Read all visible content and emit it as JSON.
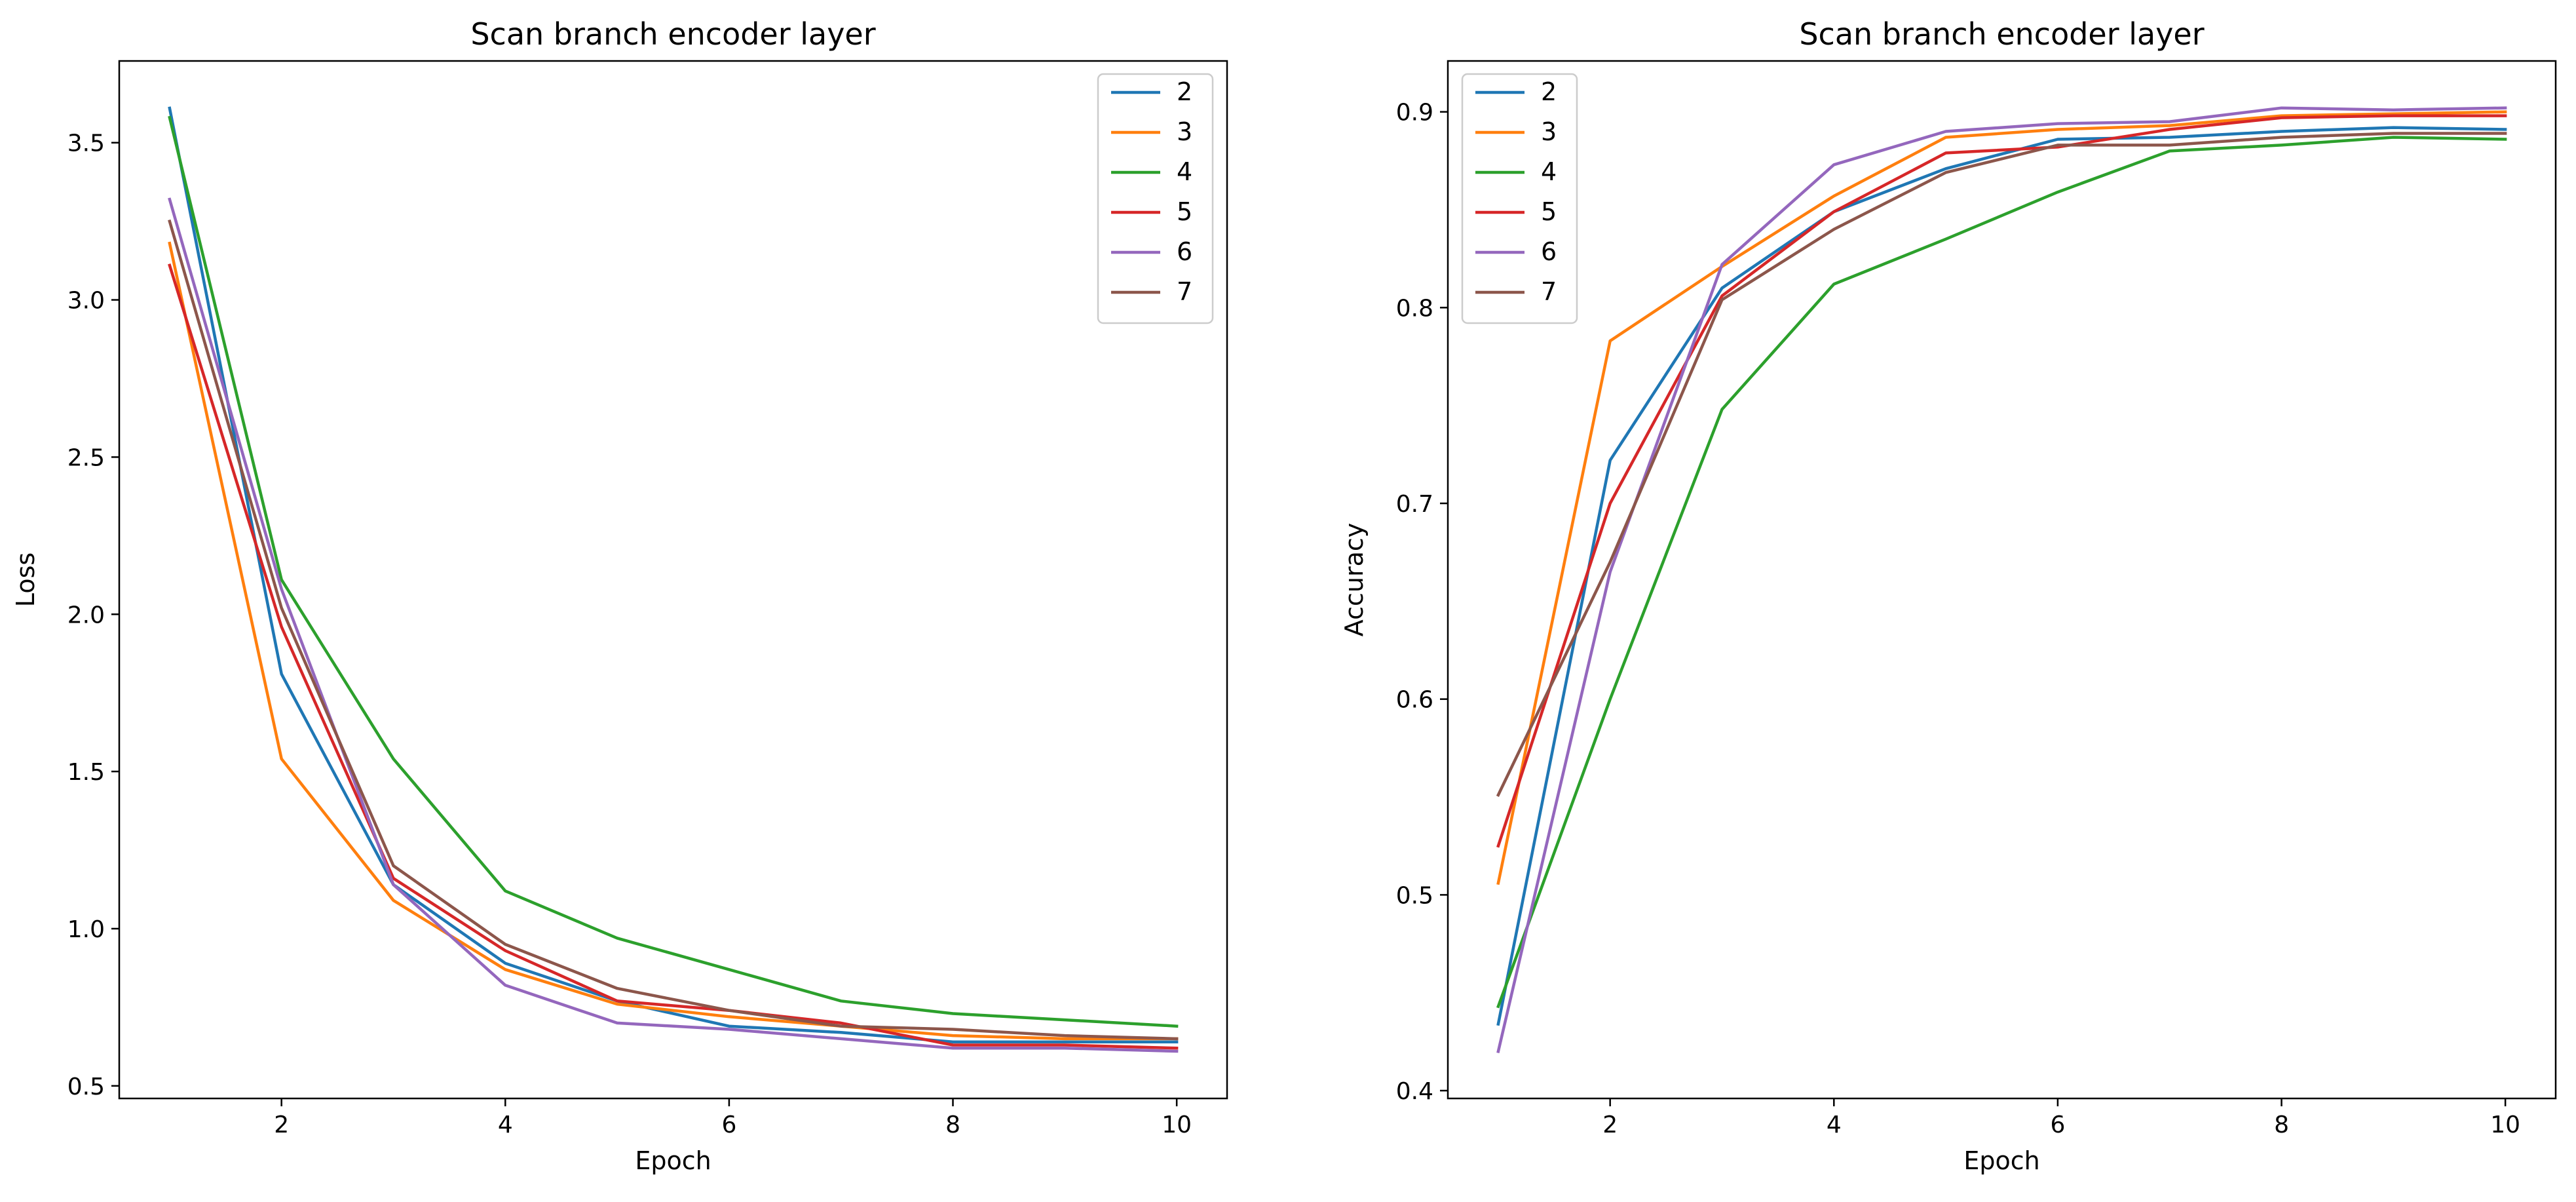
{
  "chart_data": [
    {
      "type": "line",
      "title": "Scan branch encoder layer",
      "xlabel": "Epoch",
      "ylabel": "Loss",
      "xlim": [
        0.55,
        10.45
      ],
      "ylim": [
        0.46,
        3.76
      ],
      "xticks": [
        2,
        4,
        6,
        8,
        10
      ],
      "yticks": [
        0.5,
        1.0,
        1.5,
        2.0,
        2.5,
        3.0,
        3.5
      ],
      "ytick_labels": [
        "0.5",
        "1.0",
        "1.5",
        "2.0",
        "2.5",
        "3.0",
        "3.5"
      ],
      "legend": "top-right",
      "grid": false,
      "x": [
        1,
        2,
        3,
        4,
        5,
        6,
        7,
        8,
        9,
        10
      ],
      "series": [
        {
          "name": "2",
          "color": "#1f77b4",
          "values": [
            3.61,
            1.81,
            1.14,
            0.89,
            0.77,
            0.69,
            0.67,
            0.64,
            0.64,
            0.64
          ]
        },
        {
          "name": "3",
          "color": "#ff7f0e",
          "values": [
            3.18,
            1.54,
            1.09,
            0.87,
            0.76,
            0.72,
            0.69,
            0.66,
            0.65,
            0.65
          ]
        },
        {
          "name": "4",
          "color": "#2ca02c",
          "values": [
            3.58,
            2.11,
            1.54,
            1.12,
            0.97,
            0.87,
            0.77,
            0.73,
            0.71,
            0.69
          ]
        },
        {
          "name": "5",
          "color": "#d62728",
          "values": [
            3.11,
            1.96,
            1.16,
            0.93,
            0.77,
            0.74,
            0.7,
            0.63,
            0.63,
            0.62
          ]
        },
        {
          "name": "6",
          "color": "#9467bd",
          "values": [
            3.32,
            2.08,
            1.14,
            0.82,
            0.7,
            0.68,
            0.65,
            0.62,
            0.62,
            0.61
          ]
        },
        {
          "name": "7",
          "color": "#8c564b",
          "values": [
            3.25,
            2.02,
            1.2,
            0.95,
            0.81,
            0.74,
            0.69,
            0.68,
            0.66,
            0.65
          ]
        }
      ]
    },
    {
      "type": "line",
      "title": "Scan branch encoder layer",
      "xlabel": "Epoch",
      "ylabel": "Accuracy",
      "xlim": [
        0.55,
        10.45
      ],
      "ylim": [
        0.396,
        0.926
      ],
      "xticks": [
        2,
        4,
        6,
        8,
        10
      ],
      "yticks": [
        0.4,
        0.5,
        0.6,
        0.7,
        0.8,
        0.9
      ],
      "ytick_labels": [
        "0.4",
        "0.5",
        "0.6",
        "0.7",
        "0.8",
        "0.9"
      ],
      "legend": "top-left",
      "grid": false,
      "x": [
        1,
        2,
        3,
        4,
        5,
        6,
        7,
        8,
        9,
        10
      ],
      "series": [
        {
          "name": "2",
          "color": "#1f77b4",
          "values": [
            0.434,
            0.722,
            0.81,
            0.849,
            0.871,
            0.886,
            0.887,
            0.89,
            0.892,
            0.891
          ]
        },
        {
          "name": "3",
          "color": "#ff7f0e",
          "values": [
            0.506,
            0.783,
            0.821,
            0.857,
            0.887,
            0.891,
            0.893,
            0.898,
            0.899,
            0.9
          ]
        },
        {
          "name": "4",
          "color": "#2ca02c",
          "values": [
            0.443,
            0.6,
            0.748,
            0.812,
            0.835,
            0.859,
            0.88,
            0.883,
            0.887,
            0.886
          ]
        },
        {
          "name": "5",
          "color": "#d62728",
          "values": [
            0.525,
            0.7,
            0.806,
            0.849,
            0.879,
            0.882,
            0.891,
            0.897,
            0.898,
            0.898
          ]
        },
        {
          "name": "6",
          "color": "#9467bd",
          "values": [
            0.42,
            0.665,
            0.822,
            0.873,
            0.89,
            0.894,
            0.895,
            0.902,
            0.901,
            0.902
          ]
        },
        {
          "name": "7",
          "color": "#8c564b",
          "values": [
            0.551,
            0.67,
            0.804,
            0.84,
            0.869,
            0.883,
            0.883,
            0.887,
            0.889,
            0.889
          ]
        }
      ]
    }
  ]
}
